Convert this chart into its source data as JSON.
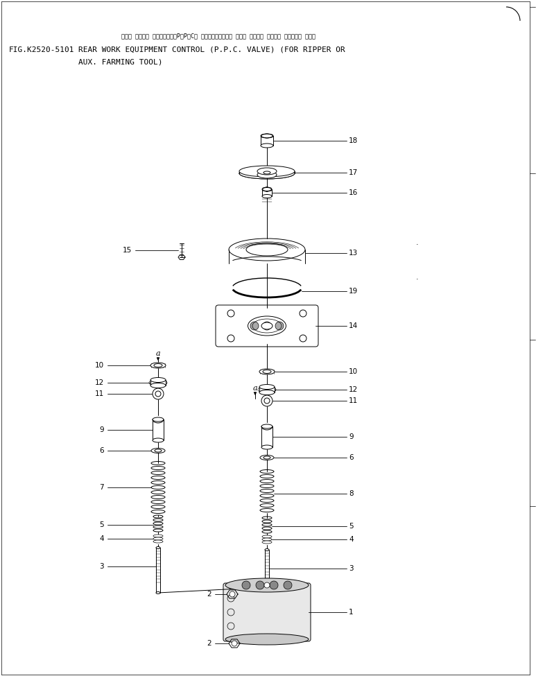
{
  "fig_label": "FIG.K2520-5101",
  "title_jp": "リヤー サギヨキ コントロール（P．P．C． バルブ）（リッパー マタハ ノウコウ サギヨキ ソウチャク ヨコ）",
  "title_line1": "REAR WORK EQUIPMENT CONTROL (P.P.C. VALVE) (FOR RIPPER OR",
  "title_line2": "AUX. FARMING TOOL)",
  "bg": "#ffffff",
  "lc": "#000000",
  "lw": 0.7
}
